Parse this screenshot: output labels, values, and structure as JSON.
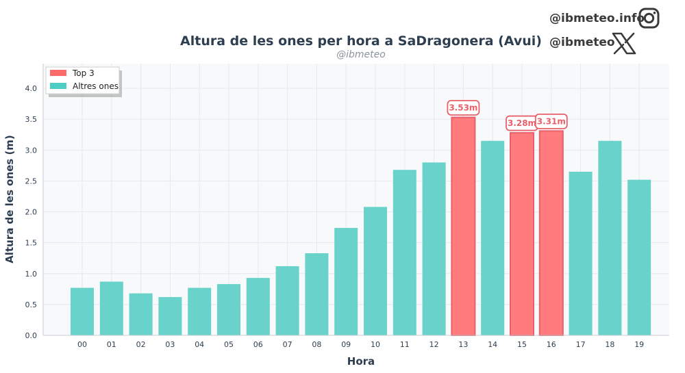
{
  "branding": {
    "instagram_handle": "@ibmeteo.info",
    "x_handle": "@ibmeteo",
    "instagram_icon": "instagram-icon",
    "x_icon": "x-logo-icon"
  },
  "chart_data": {
    "type": "bar",
    "title": "Altura de les ones per hora a SaDragonera (Avui)",
    "subtitle": "@ibmeteo",
    "xlabel": "Hora",
    "ylabel": "Altura de les ones (m)",
    "ylim": [
      0,
      4.4
    ],
    "yticks": [
      "0.0",
      "0.5",
      "1.0",
      "1.5",
      "2.0",
      "2.5",
      "3.0",
      "3.5",
      "4.0"
    ],
    "categories": [
      "00",
      "01",
      "02",
      "03",
      "04",
      "05",
      "06",
      "07",
      "08",
      "09",
      "10",
      "11",
      "12",
      "13",
      "14",
      "15",
      "16",
      "17",
      "18",
      "19"
    ],
    "values": [
      0.77,
      0.87,
      0.68,
      0.62,
      0.77,
      0.83,
      0.93,
      1.12,
      1.33,
      1.74,
      2.08,
      2.68,
      2.8,
      3.53,
      3.15,
      3.28,
      3.31,
      2.65,
      3.15,
      2.52
    ],
    "highlight": [
      false,
      false,
      false,
      false,
      false,
      false,
      false,
      false,
      false,
      false,
      false,
      false,
      false,
      true,
      false,
      true,
      true,
      false,
      false,
      false
    ],
    "data_labels": [
      {
        "category": "13",
        "text": "3.53m"
      },
      {
        "category": "15",
        "text": "3.28m"
      },
      {
        "category": "16",
        "text": "3.31m"
      }
    ],
    "legend": {
      "position": "top-left",
      "entries": [
        {
          "label": "Top 3",
          "color": "#ff6b6b"
        },
        {
          "label": "Altres ones",
          "color": "#4ecdc4"
        }
      ]
    },
    "colors": {
      "top": "#ff7b7e",
      "top_edge": "#e8606a",
      "other": "#69d2cb",
      "plot_bg": "#f7f9fb",
      "grid": "#e6e9ed"
    },
    "grid": true
  }
}
